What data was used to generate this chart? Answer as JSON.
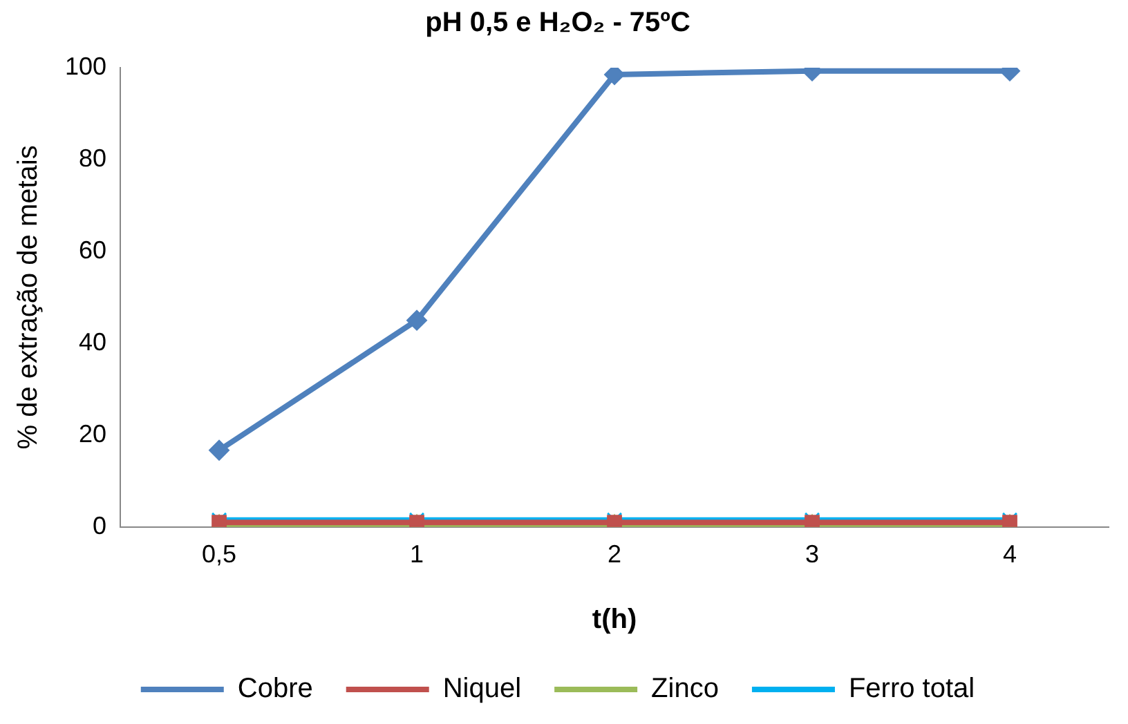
{
  "chart_data": {
    "type": "line",
    "title": "pH 0,5 e H₂O₂ - 75ºC",
    "xlabel": "t(h)",
    "ylabel": "% de extração de metais",
    "categories": [
      "0,5",
      "1",
      "2",
      "3",
      "4"
    ],
    "ylim": [
      0,
      100
    ],
    "yticks": [
      0,
      20,
      40,
      60,
      80,
      100
    ],
    "grid": false,
    "legend": "bottom",
    "series": [
      {
        "name": "Cobre",
        "color": "#4f81bd",
        "marker": "diamond",
        "values": [
          16.7,
          45,
          98.5,
          99.3,
          99.3
        ]
      },
      {
        "name": "Niquel",
        "color": "#c0504d",
        "marker": "square",
        "values": [
          1,
          1,
          1,
          1,
          1
        ]
      },
      {
        "name": "Zinco",
        "color": "#9bbb59",
        "marker": "triangle",
        "values": [
          0.5,
          0.5,
          0.5,
          0.5,
          0.5
        ]
      },
      {
        "name": "Ferro total",
        "color": "#00b0f0",
        "marker": "cross",
        "values": [
          1.5,
          1.5,
          1.5,
          1.5,
          1.5
        ]
      }
    ]
  }
}
